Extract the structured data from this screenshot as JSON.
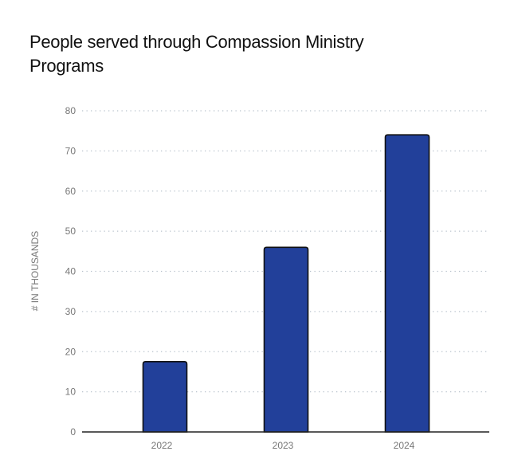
{
  "chart_data": {
    "type": "bar",
    "title": "People served through Compassion Ministry Programs",
    "xlabel": "",
    "ylabel": "# IN THOUSANDS",
    "categories": [
      "2022",
      "2023",
      "2024"
    ],
    "values": [
      17.5,
      46,
      74
    ],
    "ylim": [
      0,
      80
    ],
    "yticks": [
      0,
      10,
      20,
      30,
      40,
      50,
      60,
      70,
      80
    ],
    "grid": true,
    "bar_color": "#22409a",
    "bar_outline": "#111111"
  }
}
